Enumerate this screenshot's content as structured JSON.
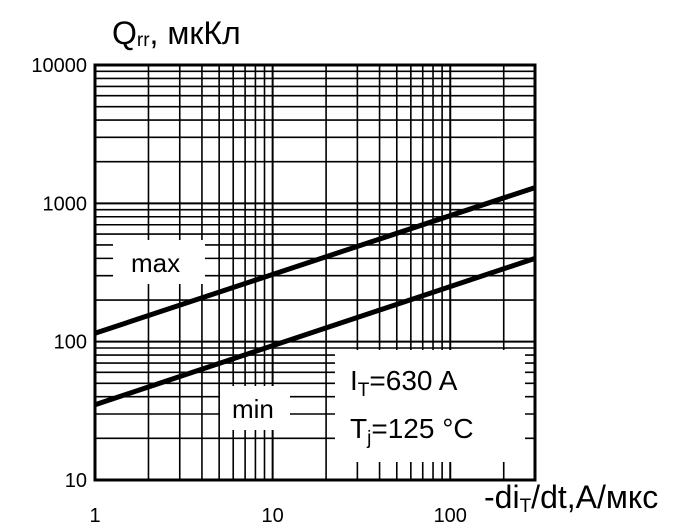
{
  "chart_data": {
    "type": "line",
    "x_scale": "log",
    "y_scale": "log",
    "xlim": [
      1,
      300
    ],
    "ylim": [
      10,
      10000
    ],
    "grid": true,
    "x_ticks": [
      "1",
      "10",
      "100"
    ],
    "y_ticks": [
      "10",
      "100",
      "1000",
      "10000"
    ],
    "ylabel": {
      "main": "Q",
      "sub": "rr",
      "rest": ", мкКл"
    },
    "xlabel": {
      "main": "-di",
      "sub": "T",
      "rest": "/dt,А/мкс"
    },
    "series": [
      {
        "name": "max",
        "x": [
          1,
          300
        ],
        "y": [
          115,
          1300
        ]
      },
      {
        "name": "min",
        "x": [
          1,
          300
        ],
        "y": [
          35,
          400
        ]
      }
    ],
    "annotations": {
      "line1": {
        "main": "I",
        "sub": "T",
        "rest": "=630 A"
      },
      "line2": {
        "main": "T",
        "sub": "j",
        "rest": "=125 °C"
      }
    }
  }
}
